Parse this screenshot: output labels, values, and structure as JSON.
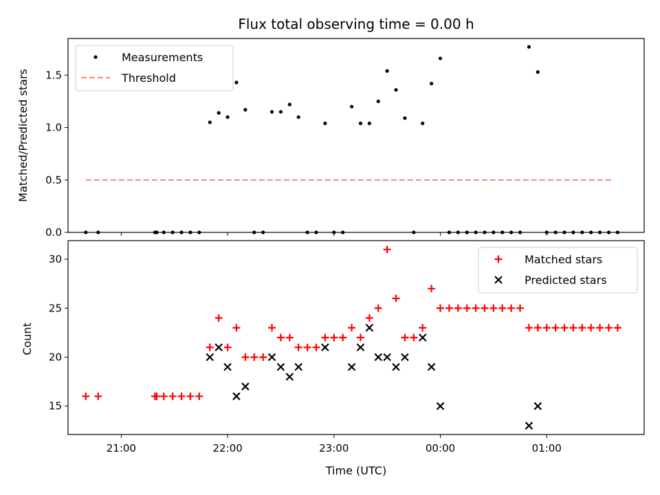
{
  "chart_data": [
    {
      "type": "scatter",
      "title": "Flux total observing time = 0.00 h",
      "xlabel": "",
      "ylabel": "Matched/Predicted stars",
      "xlim": [
        "20:30",
        "01:55"
      ],
      "ylim": [
        0,
        1.85
      ],
      "yticks": [
        "0.0",
        "0.5",
        "1.0",
        "1.5"
      ],
      "grid": false,
      "legend_position": "top-left",
      "series": [
        {
          "name": "Measurements",
          "marker": "dot",
          "color": "#000000",
          "points": [
            [
              "20:40",
              0
            ],
            [
              "20:47",
              0
            ],
            [
              "21:19",
              0
            ],
            [
              "21:20",
              0
            ],
            [
              "21:24",
              0
            ],
            [
              "21:29",
              0
            ],
            [
              "21:34",
              0
            ],
            [
              "21:39",
              0
            ],
            [
              "21:44",
              0
            ],
            [
              "21:50",
              1.05
            ],
            [
              "21:55",
              1.14
            ],
            [
              "22:00",
              1.1
            ],
            [
              "22:05",
              1.43
            ],
            [
              "22:10",
              1.17
            ],
            [
              "22:15",
              0
            ],
            [
              "22:20",
              0
            ],
            [
              "22:25",
              1.15
            ],
            [
              "22:30",
              1.15
            ],
            [
              "22:35",
              1.22
            ],
            [
              "22:40",
              1.1
            ],
            [
              "22:45",
              0
            ],
            [
              "22:50",
              0
            ],
            [
              "22:55",
              1.04
            ],
            [
              "23:00",
              0
            ],
            [
              "23:05",
              0
            ],
            [
              "23:10",
              1.2
            ],
            [
              "23:15",
              1.04
            ],
            [
              "23:20",
              1.04
            ],
            [
              "23:25",
              1.25
            ],
            [
              "23:30",
              1.54
            ],
            [
              "23:35",
              1.36
            ],
            [
              "23:40",
              1.09
            ],
            [
              "23:45",
              0
            ],
            [
              "23:50",
              1.04
            ],
            [
              "23:55",
              1.42
            ],
            [
              "00:00",
              1.66
            ],
            [
              "00:05",
              0
            ],
            [
              "00:10",
              0
            ],
            [
              "00:15",
              0
            ],
            [
              "00:20",
              0
            ],
            [
              "00:25",
              0
            ],
            [
              "00:30",
              0
            ],
            [
              "00:35",
              0
            ],
            [
              "00:40",
              0
            ],
            [
              "00:45",
              0
            ],
            [
              "00:50",
              1.77
            ],
            [
              "00:55",
              1.53
            ],
            [
              "01:00",
              0
            ],
            [
              "01:05",
              0
            ],
            [
              "01:10",
              0
            ],
            [
              "01:15",
              0
            ],
            [
              "01:20",
              0
            ],
            [
              "01:25",
              0
            ],
            [
              "01:30",
              0
            ],
            [
              "01:35",
              0
            ],
            [
              "01:40",
              0
            ]
          ]
        },
        {
          "name": "Threshold",
          "marker": "dashed-line",
          "color": "#ff8080",
          "points": [
            [
              "20:40",
              0.5
            ],
            [
              "01:38",
              0.5
            ]
          ]
        }
      ]
    },
    {
      "type": "scatter",
      "title": "",
      "xlabel": "Time (UTC)",
      "ylabel": "Count",
      "xlim": [
        "20:30",
        "01:55"
      ],
      "ylim": [
        12.1,
        31.9
      ],
      "xticks": [
        "21:00",
        "22:00",
        "23:00",
        "00:00",
        "01:00"
      ],
      "yticks": [
        "15",
        "20",
        "25",
        "30"
      ],
      "grid": false,
      "legend_position": "top-right",
      "series": [
        {
          "name": "Matched stars",
          "marker": "plus",
          "color": "#ff0000",
          "points": [
            [
              "20:40",
              16
            ],
            [
              "20:47",
              16
            ],
            [
              "21:19",
              16
            ],
            [
              "21:20",
              16
            ],
            [
              "21:24",
              16
            ],
            [
              "21:29",
              16
            ],
            [
              "21:34",
              16
            ],
            [
              "21:39",
              16
            ],
            [
              "21:44",
              16
            ],
            [
              "21:50",
              21
            ],
            [
              "21:55",
              24
            ],
            [
              "22:00",
              21
            ],
            [
              "22:05",
              23
            ],
            [
              "22:10",
              20
            ],
            [
              "22:15",
              20
            ],
            [
              "22:20",
              20
            ],
            [
              "22:25",
              23
            ],
            [
              "22:30",
              22
            ],
            [
              "22:35",
              22
            ],
            [
              "22:40",
              21
            ],
            [
              "22:45",
              21
            ],
            [
              "22:50",
              21
            ],
            [
              "22:55",
              22
            ],
            [
              "23:00",
              22
            ],
            [
              "23:05",
              22
            ],
            [
              "23:10",
              23
            ],
            [
              "23:15",
              22
            ],
            [
              "23:20",
              24
            ],
            [
              "23:25",
              25
            ],
            [
              "23:30",
              31
            ],
            [
              "23:35",
              26
            ],
            [
              "23:40",
              22
            ],
            [
              "23:45",
              22
            ],
            [
              "23:50",
              23
            ],
            [
              "23:55",
              27
            ],
            [
              "00:00",
              25
            ],
            [
              "00:05",
              25
            ],
            [
              "00:10",
              25
            ],
            [
              "00:15",
              25
            ],
            [
              "00:20",
              25
            ],
            [
              "00:25",
              25
            ],
            [
              "00:30",
              25
            ],
            [
              "00:35",
              25
            ],
            [
              "00:40",
              25
            ],
            [
              "00:45",
              25
            ],
            [
              "00:50",
              23
            ],
            [
              "00:55",
              23
            ],
            [
              "01:00",
              23
            ],
            [
              "01:05",
              23
            ],
            [
              "01:10",
              23
            ],
            [
              "01:15",
              23
            ],
            [
              "01:20",
              23
            ],
            [
              "01:25",
              23
            ],
            [
              "01:30",
              23
            ],
            [
              "01:35",
              23
            ],
            [
              "01:40",
              23
            ]
          ]
        },
        {
          "name": "Predicted stars",
          "marker": "x",
          "color": "#000000",
          "points": [
            [
              "21:50",
              20
            ],
            [
              "21:55",
              21
            ],
            [
              "22:00",
              19
            ],
            [
              "22:05",
              16
            ],
            [
              "22:10",
              17
            ],
            [
              "22:25",
              20
            ],
            [
              "22:30",
              19
            ],
            [
              "22:35",
              18
            ],
            [
              "22:40",
              19
            ],
            [
              "22:55",
              21
            ],
            [
              "23:10",
              19
            ],
            [
              "23:15",
              21
            ],
            [
              "23:20",
              23
            ],
            [
              "23:25",
              20
            ],
            [
              "23:30",
              20
            ],
            [
              "23:35",
              19
            ],
            [
              "23:40",
              20
            ],
            [
              "23:50",
              22
            ],
            [
              "23:55",
              19
            ],
            [
              "00:00",
              15
            ],
            [
              "00:50",
              13
            ],
            [
              "00:55",
              15
            ]
          ]
        }
      ]
    }
  ]
}
